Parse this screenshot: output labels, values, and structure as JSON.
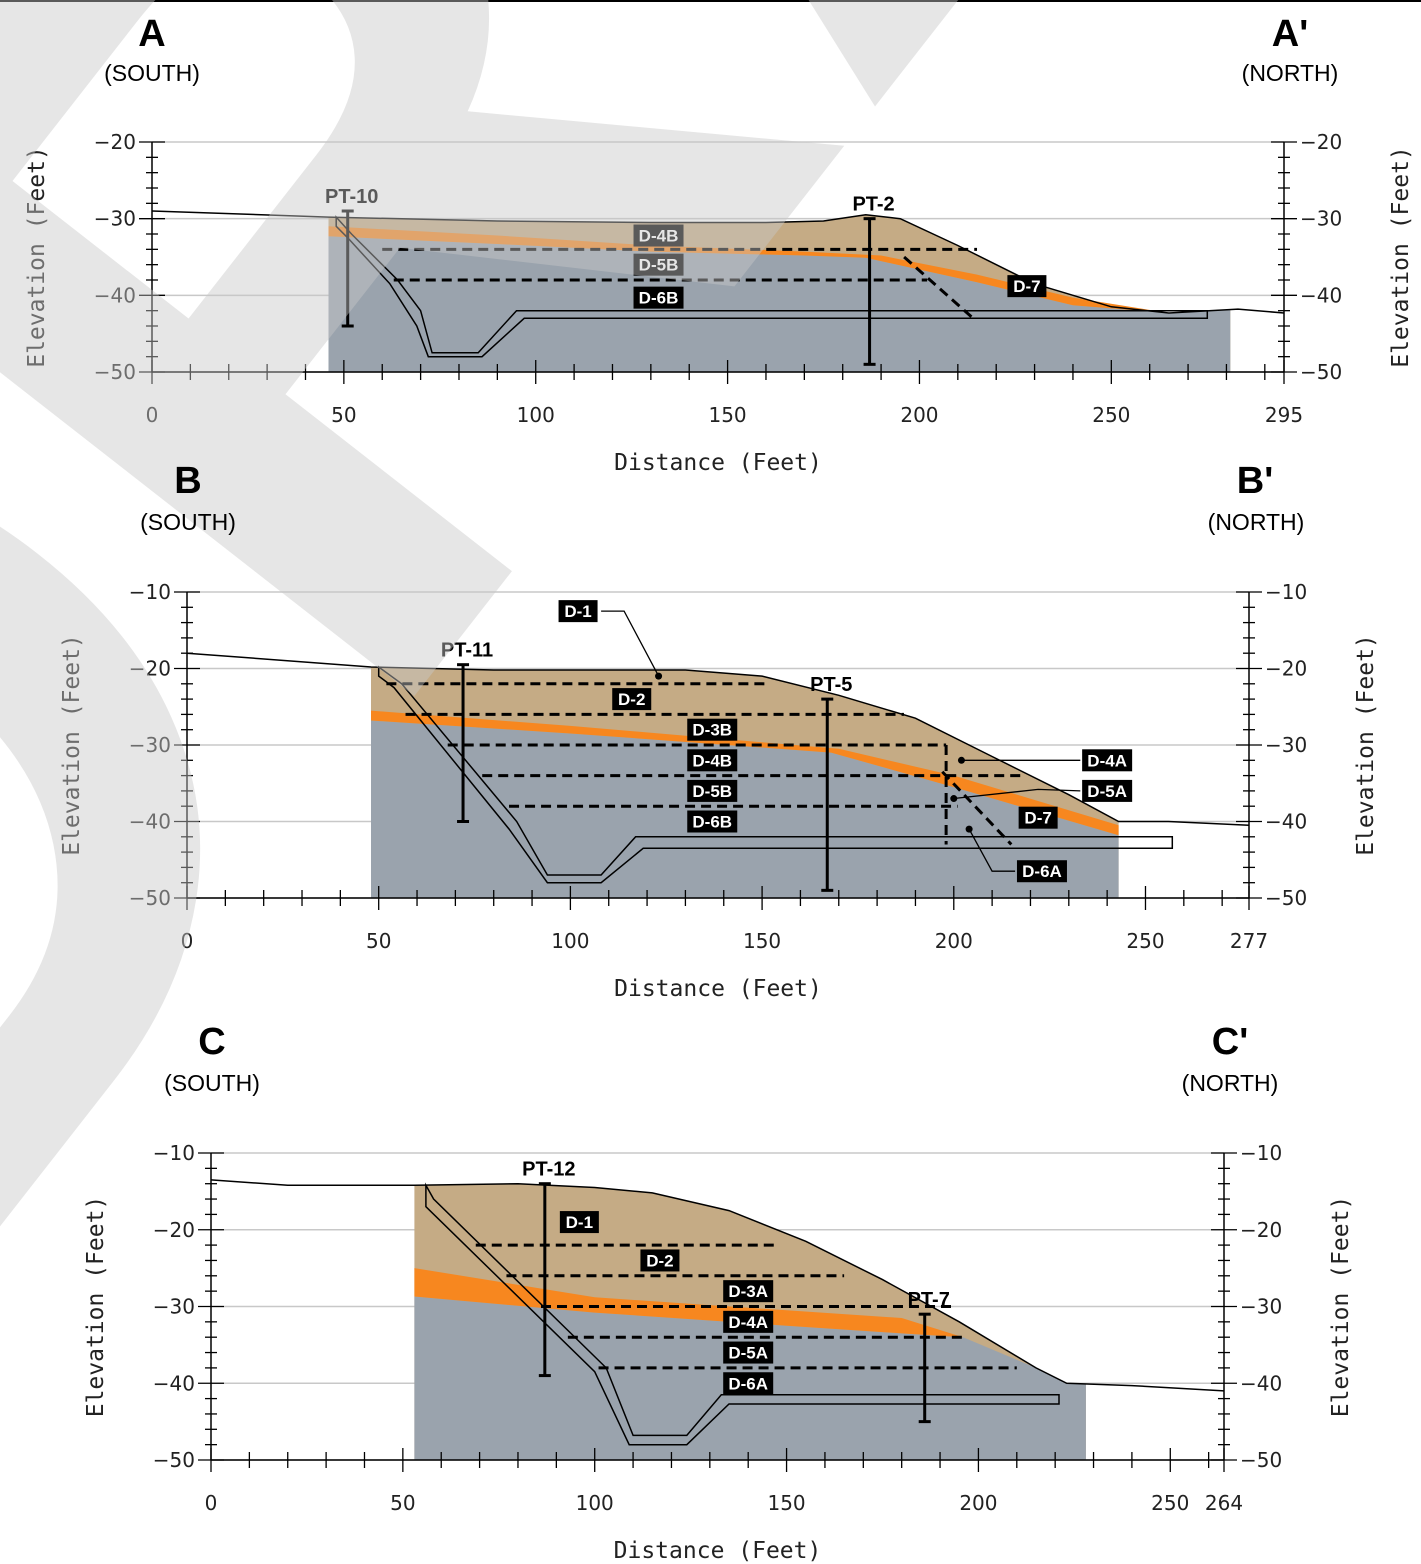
{
  "sections": [
    {
      "id": "A",
      "start_label": "A",
      "start_dir": "(SOUTH)",
      "end_label": "A'",
      "end_dir": "(NORTH)",
      "xlabel": "Distance (Feet)",
      "ylabel_left": "Elevation (Feet)",
      "ylabel_right": "Elevation (Feet)",
      "x_ticks": [
        0,
        50,
        100,
        150,
        200,
        250,
        295
      ],
      "y_ticks": [
        -20,
        -30,
        -40,
        -50
      ],
      "xlim": [
        0,
        295
      ],
      "ylim": [
        -50,
        -20
      ],
      "ground": [
        [
          0,
          -29
        ],
        [
          46,
          -29.8
        ],
        [
          90,
          -30.3
        ],
        [
          130,
          -30.5
        ],
        [
          160,
          -30.5
        ],
        [
          175,
          -30.3
        ],
        [
          186,
          -29.5
        ],
        [
          195,
          -30
        ],
        [
          210,
          -33.5
        ],
        [
          230,
          -38.5
        ],
        [
          250,
          -41.5
        ],
        [
          265,
          -42.3
        ],
        [
          283,
          -41.8
        ],
        [
          295,
          -42.3
        ]
      ],
      "fill_range": [
        46,
        281
      ],
      "orange_top": [
        [
          46,
          -31
        ],
        [
          90,
          -32.2
        ],
        [
          130,
          -33.5
        ],
        [
          170,
          -34.3
        ],
        [
          190,
          -34.8
        ],
        [
          215,
          -37.3
        ],
        [
          240,
          -40.3
        ],
        [
          265,
          -42.3
        ]
      ],
      "orange_bottom": [
        [
          46,
          -32.3
        ],
        [
          90,
          -33.3
        ],
        [
          130,
          -34.3
        ],
        [
          170,
          -34.8
        ],
        [
          186,
          -35.1
        ],
        [
          215,
          -38.3
        ],
        [
          240,
          -41.3
        ],
        [
          265,
          -42.3
        ]
      ],
      "excavation": [
        [
          48,
          -29.8
        ],
        [
          52,
          -32
        ],
        [
          64,
          -38
        ],
        [
          70,
          -42
        ],
        [
          73,
          -47.5
        ],
        [
          85,
          -47.5
        ],
        [
          95,
          -42
        ],
        [
          98,
          -42
        ],
        [
          275,
          -42
        ],
        [
          275,
          -43
        ],
        [
          97,
          -43
        ],
        [
          86,
          -48
        ],
        [
          72,
          -48
        ],
        [
          69,
          -44
        ],
        [
          62,
          -38.5
        ],
        [
          51,
          -32.5
        ],
        [
          48,
          -31
        ]
      ],
      "boreholes": [
        {
          "name": "PT-10",
          "x": 51,
          "top": -29,
          "bottom": -44
        },
        {
          "name": "PT-2",
          "x": 187,
          "top": -30,
          "bottom": -49
        }
      ],
      "dashed_lines": [
        {
          "x1": 60,
          "x2": 215,
          "y": -34
        },
        {
          "x1": 63,
          "x2": 202,
          "y": -38
        },
        {
          "x1": 196,
          "x2": 214,
          "y": -35,
          "y2": -43
        }
      ],
      "units": [
        {
          "label": "D-4B",
          "x": 132,
          "y": -32.2
        },
        {
          "label": "D-5B",
          "x": 132,
          "y": -36
        },
        {
          "label": "D-6B",
          "x": 132,
          "y": -40.3
        },
        {
          "label": "D-7",
          "x": 228,
          "y": -38.8
        }
      ]
    },
    {
      "id": "B",
      "start_label": "B",
      "start_dir": "(SOUTH)",
      "end_label": "B'",
      "end_dir": "(NORTH)",
      "xlabel": "Distance (Feet)",
      "ylabel_left": "Elevation (Feet)",
      "ylabel_right": "Elevation (Feet)",
      "x_ticks": [
        0,
        50,
        100,
        150,
        200,
        250,
        277
      ],
      "y_ticks": [
        -10,
        -20,
        -30,
        -40,
        -50
      ],
      "xlim": [
        0,
        277
      ],
      "ylim": [
        -50,
        -10
      ],
      "ground": [
        [
          0,
          -18
        ],
        [
          48,
          -19.8
        ],
        [
          80,
          -20.2
        ],
        [
          130,
          -20.2
        ],
        [
          150,
          -21
        ],
        [
          170,
          -23.5
        ],
        [
          190,
          -26.5
        ],
        [
          210,
          -31.5
        ],
        [
          230,
          -36.5
        ],
        [
          243,
          -40
        ],
        [
          256,
          -40
        ],
        [
          277,
          -40.5
        ]
      ],
      "fill_range": [
        48,
        243
      ],
      "orange_top": [
        [
          48,
          -25.5
        ],
        [
          100,
          -27.5
        ],
        [
          170,
          -30.5
        ],
        [
          200,
          -34
        ],
        [
          243,
          -40.5
        ]
      ],
      "orange_bottom": [
        [
          48,
          -26.8
        ],
        [
          100,
          -28.5
        ],
        [
          168,
          -31
        ],
        [
          200,
          -35.5
        ],
        [
          243,
          -41.8
        ]
      ],
      "excavation": [
        [
          50,
          -19.8
        ],
        [
          56,
          -22
        ],
        [
          86,
          -40
        ],
        [
          94,
          -47
        ],
        [
          108,
          -47
        ],
        [
          117,
          -42
        ],
        [
          257,
          -42
        ],
        [
          257,
          -43.5
        ],
        [
          119,
          -43.5
        ],
        [
          108,
          -48
        ],
        [
          94,
          -48
        ],
        [
          84,
          -41
        ],
        [
          54,
          -22.5
        ],
        [
          50,
          -21
        ]
      ],
      "boreholes": [
        {
          "name": "PT-11",
          "x": 72,
          "top": -19.5,
          "bottom": -40
        },
        {
          "name": "PT-5",
          "x": 167,
          "top": -24,
          "bottom": -49
        }
      ],
      "dashed_lines": [
        {
          "x1": 52,
          "x2": 152,
          "y": -22
        },
        {
          "x1": 57,
          "x2": 187,
          "y": -26
        },
        {
          "x1": 68,
          "x2": 198,
          "y": -30
        },
        {
          "x1": 77,
          "x2": 218,
          "y": -34
        },
        {
          "x1": 84,
          "x2": 201,
          "y": -38
        },
        {
          "x1": 198,
          "x2": 198,
          "y": -30,
          "y2": -43
        },
        {
          "x1": 197,
          "x2": 215,
          "y": -33.5,
          "y2": -43
        }
      ],
      "units": [
        {
          "label": "D-1",
          "x": 102,
          "y": -12.5
        },
        {
          "label": "D-2",
          "x": 116,
          "y": -24
        },
        {
          "label": "D-3B",
          "x": 137,
          "y": -28
        },
        {
          "label": "D-4B",
          "x": 137,
          "y": -32
        },
        {
          "label": "D-5B",
          "x": 137,
          "y": -36
        },
        {
          "label": "D-6B",
          "x": 137,
          "y": -40
        },
        {
          "label": "D-4A",
          "x": 240,
          "y": -32
        },
        {
          "label": "D-5A",
          "x": 240,
          "y": -36
        },
        {
          "label": "D-7",
          "x": 222,
          "y": -39.5
        },
        {
          "label": "D-6A",
          "x": 223,
          "y": -46.5
        }
      ],
      "leaders": [
        [
          [
            108,
            -12.5
          ],
          [
            114,
            -12.5
          ],
          [
            123,
            -21
          ]
        ],
        [
          [
            233,
            -32
          ],
          [
            224,
            -32
          ],
          [
            202,
            -32
          ]
        ],
        [
          [
            233,
            -36
          ],
          [
            222,
            -35.8
          ],
          [
            200,
            -37
          ]
        ],
        [
          [
            216,
            -46.5
          ],
          [
            210,
            -46.5
          ],
          [
            204,
            -41
          ]
        ]
      ]
    },
    {
      "id": "C",
      "start_label": "C",
      "start_dir": "(SOUTH)",
      "end_label": "C'",
      "end_dir": "(NORTH)",
      "xlabel": "Distance (Feet)",
      "ylabel_left": "Elevation (Feet)",
      "ylabel_right": "Elevation (Feet)",
      "x_ticks": [
        0,
        50,
        100,
        150,
        200,
        250,
        264
      ],
      "y_ticks": [
        -10,
        -20,
        -30,
        -40,
        -50
      ],
      "xlim": [
        0,
        264
      ],
      "ylim": [
        -50,
        -10
      ],
      "ground": [
        [
          0,
          -13.5
        ],
        [
          20,
          -14.2
        ],
        [
          53,
          -14.2
        ],
        [
          80,
          -14
        ],
        [
          100,
          -14.5
        ],
        [
          115,
          -15.2
        ],
        [
          135,
          -17.5
        ],
        [
          155,
          -21.5
        ],
        [
          175,
          -26.5
        ],
        [
          195,
          -32
        ],
        [
          215,
          -38
        ],
        [
          223,
          -40
        ],
        [
          240,
          -40.3
        ],
        [
          264,
          -41
        ]
      ],
      "fill_range": [
        53,
        228
      ],
      "orange_top": [
        [
          53,
          -25
        ],
        [
          100,
          -28.8
        ],
        [
          150,
          -30.5
        ],
        [
          180,
          -31.5
        ],
        [
          196,
          -34
        ]
      ],
      "orange_bottom": [
        [
          53,
          -28.7
        ],
        [
          100,
          -30.8
        ],
        [
          150,
          -32.5
        ],
        [
          180,
          -33.5
        ],
        [
          196,
          -34
        ]
      ],
      "excavation": [
        [
          56,
          -14.2
        ],
        [
          58,
          -16
        ],
        [
          103,
          -38
        ],
        [
          110,
          -46.8
        ],
        [
          124,
          -46.8
        ],
        [
          133,
          -41.5
        ],
        [
          221,
          -41.5
        ],
        [
          221,
          -42.7
        ],
        [
          135,
          -42.7
        ],
        [
          124,
          -48
        ],
        [
          109,
          -48
        ],
        [
          100,
          -38.5
        ],
        [
          56,
          -17
        ]
      ],
      "boreholes": [
        {
          "name": "PT-12",
          "x": 87,
          "top": -14,
          "bottom": -39
        },
        {
          "name": "PT-7",
          "x": 186,
          "top": -31,
          "bottom": -45
        }
      ],
      "dashed_lines": [
        {
          "x1": 69,
          "x2": 147,
          "y": -22
        },
        {
          "x1": 77,
          "x2": 165,
          "y": -26
        },
        {
          "x1": 86,
          "x2": 193,
          "y": -30
        },
        {
          "x1": 93,
          "x2": 196,
          "y": -34
        },
        {
          "x1": 101,
          "x2": 210,
          "y": -38
        }
      ],
      "units": [
        {
          "label": "D-1",
          "x": 96,
          "y": -19
        },
        {
          "label": "D-2",
          "x": 117,
          "y": -24
        },
        {
          "label": "D-3A",
          "x": 140,
          "y": -28
        },
        {
          "label": "D-4A",
          "x": 140,
          "y": -32
        },
        {
          "label": "D-5A",
          "x": 140,
          "y": -36
        },
        {
          "label": "D-6A",
          "x": 140,
          "y": -40
        }
      ]
    }
  ],
  "colors": {
    "fill_tan": "#c5ab85",
    "fill_orange": "#f7871f",
    "fill_gray": "#9aa3ad",
    "grid": "#c8c8c8",
    "line": "#000000",
    "label_bg": "#000000"
  },
  "watermark": "DRAFT"
}
